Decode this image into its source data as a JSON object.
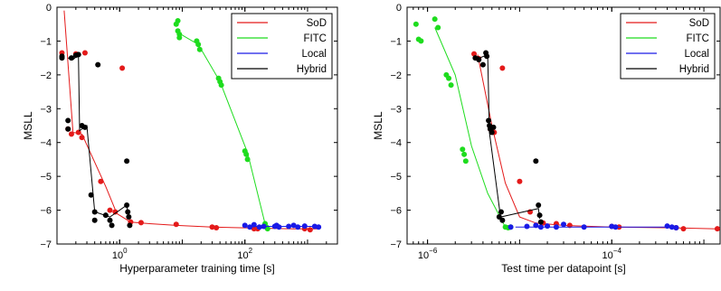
{
  "chart_data": [
    {
      "type": "scatter",
      "xscale": "log",
      "xlabel": "Hyperparameter training time [s]",
      "ylabel": "MSLL",
      "xlim": [
        0.1,
        3000
      ],
      "ylim": [
        -7,
        0
      ],
      "xticks": [
        {
          "value": 1,
          "base": "10",
          "exp": "0"
        },
        {
          "value": 100,
          "base": "10",
          "exp": "2"
        }
      ],
      "yticks": [
        0,
        -1,
        -2,
        -3,
        -4,
        -5,
        -6,
        -7
      ],
      "legend_position": "top-right",
      "series": [
        {
          "name": "SoD",
          "color": "#e41a1a",
          "line": [
            [
              0.13,
              -0.1
            ],
            [
              0.18,
              -3.7
            ],
            [
              0.25,
              -3.75
            ],
            [
              0.6,
              -5.3
            ],
            [
              0.9,
              -6.1
            ],
            [
              1.5,
              -6.35
            ],
            [
              3,
              -6.4
            ],
            [
              8,
              -6.45
            ],
            [
              30,
              -6.5
            ],
            [
              150,
              -6.53
            ],
            [
              600,
              -6.55
            ],
            [
              1500,
              -6.55
            ]
          ],
          "points": [
            [
              0.12,
              -1.35
            ],
            [
              0.15,
              -3.6
            ],
            [
              0.17,
              -3.75
            ],
            [
              0.2,
              -1.38
            ],
            [
              0.22,
              -3.7
            ],
            [
              0.25,
              -3.85
            ],
            [
              0.28,
              -1.35
            ],
            [
              0.5,
              -5.15
            ],
            [
              0.7,
              -6.0
            ],
            [
              0.85,
              -6.05
            ],
            [
              1.1,
              -1.8
            ],
            [
              1.5,
              -6.35
            ],
            [
              2.2,
              -6.37
            ],
            [
              8,
              -6.42
            ],
            [
              30,
              -6.5
            ],
            [
              35,
              -6.52
            ],
            [
              140,
              -6.55
            ],
            [
              160,
              -6.55
            ],
            [
              900,
              -6.55
            ],
            [
              1100,
              -6.58
            ]
          ]
        },
        {
          "name": "FITC",
          "color": "#1edc1e",
          "line": [
            [
              8.5,
              -0.75
            ],
            [
              18,
              -1.1
            ],
            [
              40,
              -2.2
            ],
            [
              110,
              -4.3
            ],
            [
              220,
              -6.55
            ]
          ],
          "points": [
            [
              8,
              -0.5
            ],
            [
              8.5,
              -0.4
            ],
            [
              8.5,
              -0.7
            ],
            [
              9,
              -0.8
            ],
            [
              9,
              -0.9
            ],
            [
              17,
              -1.0
            ],
            [
              18,
              -1.1
            ],
            [
              19,
              -1.25
            ],
            [
              38,
              -2.1
            ],
            [
              40,
              -2.2
            ],
            [
              42,
              -2.3
            ],
            [
              100,
              -4.25
            ],
            [
              105,
              -4.35
            ],
            [
              110,
              -4.5
            ],
            [
              210,
              -6.4
            ],
            [
              220,
              -6.5
            ],
            [
              230,
              -6.55
            ]
          ]
        },
        {
          "name": "Local",
          "color": "#1a1ae6",
          "line": [
            [
              120,
              -6.48
            ],
            [
              300,
              -6.48
            ],
            [
              1500,
              -6.48
            ]
          ],
          "points": [
            [
              100,
              -6.45
            ],
            [
              120,
              -6.5
            ],
            [
              140,
              -6.43
            ],
            [
              170,
              -6.5
            ],
            [
              200,
              -6.48
            ],
            [
              300,
              -6.48
            ],
            [
              320,
              -6.45
            ],
            [
              350,
              -6.5
            ],
            [
              500,
              -6.48
            ],
            [
              600,
              -6.45
            ],
            [
              700,
              -6.5
            ],
            [
              900,
              -6.47
            ],
            [
              1300,
              -6.48
            ],
            [
              1500,
              -6.5
            ]
          ]
        },
        {
          "name": "Hybrid",
          "color": "#000000",
          "line": [
            [
              0.15,
              -1.5
            ],
            [
              0.18,
              -1.55
            ],
            [
              0.22,
              -1.4
            ],
            [
              0.23,
              -3.65
            ],
            [
              0.3,
              -3.5
            ],
            [
              0.4,
              -6.05
            ],
            [
              0.7,
              -6.2
            ],
            [
              1.3,
              -5.85
            ],
            [
              1.4,
              -6.25
            ]
          ],
          "points": [
            [
              0.12,
              -1.45
            ],
            [
              0.12,
              -1.5
            ],
            [
              0.15,
              -3.35
            ],
            [
              0.15,
              -3.6
            ],
            [
              0.17,
              -1.5
            ],
            [
              0.2,
              -1.42
            ],
            [
              0.22,
              -1.4
            ],
            [
              0.25,
              -3.5
            ],
            [
              0.28,
              -3.55
            ],
            [
              0.35,
              -5.55
            ],
            [
              0.4,
              -6.05
            ],
            [
              0.4,
              -6.3
            ],
            [
              0.45,
              -1.7
            ],
            [
              0.6,
              -6.15
            ],
            [
              0.7,
              -6.3
            ],
            [
              0.75,
              -6.45
            ],
            [
              1.3,
              -4.55
            ],
            [
              1.3,
              -5.85
            ],
            [
              1.35,
              -6.05
            ],
            [
              1.4,
              -6.2
            ],
            [
              1.45,
              -6.45
            ]
          ]
        }
      ]
    },
    {
      "type": "scatter",
      "xscale": "log",
      "xlabel": "Test time per datapoint [s]",
      "ylabel": "MSLL",
      "xlim": [
        6e-07,
        0.0015
      ],
      "ylim": [
        -7,
        0
      ],
      "xticks": [
        {
          "value": 1e-06,
          "base": "10",
          "exp": "−6"
        },
        {
          "value": 0.0001,
          "base": "10",
          "exp": "−4"
        }
      ],
      "yticks": [
        0,
        -1,
        -2,
        -3,
        -4,
        -5,
        -6,
        -7
      ],
      "legend_position": "top-right",
      "series": [
        {
          "name": "SoD",
          "color": "#e41a1a",
          "line": [
            [
              3.5e-06,
              -1.4
            ],
            [
              5e-06,
              -3.5
            ],
            [
              7e-06,
              -5.2
            ],
            [
              1e-05,
              -6.2
            ],
            [
              1.5e-05,
              -6.38
            ],
            [
              3e-05,
              -6.45
            ],
            [
              0.0001,
              -6.5
            ],
            [
              0.0004,
              -6.52
            ],
            [
              0.0014,
              -6.55
            ]
          ],
          "points": [
            [
              3.2e-06,
              -1.38
            ],
            [
              3.6e-06,
              -1.52
            ],
            [
              4.8e-06,
              -3.6
            ],
            [
              5.3e-06,
              -3.7
            ],
            [
              6.5e-06,
              -1.8
            ],
            [
              1e-05,
              -5.15
            ],
            [
              1.3e-05,
              -6.05
            ],
            [
              1.8e-05,
              -6.38
            ],
            [
              2.5e-05,
              -6.4
            ],
            [
              3.5e-05,
              -6.45
            ],
            [
              0.0001,
              -6.48
            ],
            [
              0.00012,
              -6.5
            ],
            [
              0.0005,
              -6.52
            ],
            [
              0.0006,
              -6.55
            ],
            [
              0.0014,
              -6.55
            ]
          ]
        },
        {
          "name": "FITC",
          "color": "#1edc1e",
          "line": [
            [
              1.2e-06,
              -0.6
            ],
            [
              2e-06,
              -2.0
            ],
            [
              3e-06,
              -4.1
            ],
            [
              4.5e-06,
              -5.5
            ],
            [
              7e-06,
              -6.5
            ]
          ],
          "points": [
            [
              7.5e-07,
              -0.5
            ],
            [
              8e-07,
              -0.95
            ],
            [
              8.5e-07,
              -1.0
            ],
            [
              1.2e-06,
              -0.35
            ],
            [
              1.3e-06,
              -0.6
            ],
            [
              1.6e-06,
              -2.0
            ],
            [
              1.7e-06,
              -2.1
            ],
            [
              1.8e-06,
              -2.3
            ],
            [
              2.4e-06,
              -4.2
            ],
            [
              2.5e-06,
              -4.35
            ],
            [
              2.6e-06,
              -4.55
            ],
            [
              7e-06,
              -6.5
            ],
            [
              7.5e-06,
              -6.52
            ],
            [
              8e-06,
              -6.5
            ]
          ]
        },
        {
          "name": "Local",
          "color": "#1a1ae6",
          "line": [
            [
              9e-06,
              -6.5
            ],
            [
              3e-05,
              -6.5
            ],
            [
              0.0005,
              -6.5
            ]
          ],
          "points": [
            [
              8e-06,
              -6.5
            ],
            [
              1.2e-05,
              -6.48
            ],
            [
              1.5e-05,
              -6.45
            ],
            [
              1.7e-05,
              -6.5
            ],
            [
              2e-05,
              -6.47
            ],
            [
              2.5e-05,
              -6.5
            ],
            [
              3e-05,
              -6.42
            ],
            [
              5e-05,
              -6.5
            ],
            [
              0.0001,
              -6.48
            ],
            [
              0.00011,
              -6.5
            ],
            [
              0.0004,
              -6.47
            ],
            [
              0.00045,
              -6.5
            ],
            [
              0.0005,
              -6.52
            ]
          ]
        },
        {
          "name": "Hybrid",
          "color": "#000000",
          "line": [
            [
              3.5e-06,
              -1.45
            ],
            [
              3.7e-06,
              -1.5
            ],
            [
              4.5e-06,
              -1.4
            ],
            [
              4.7e-06,
              -3.7
            ],
            [
              6.2e-06,
              -6.2
            ],
            [
              1.6e-05,
              -5.95
            ],
            [
              1.65e-05,
              -6.25
            ]
          ],
          "points": [
            [
              3.3e-06,
              -1.5
            ],
            [
              3.6e-06,
              -1.55
            ],
            [
              4e-06,
              -1.7
            ],
            [
              4.3e-06,
              -1.35
            ],
            [
              4.4e-06,
              -1.45
            ],
            [
              4.6e-06,
              -3.35
            ],
            [
              4.7e-06,
              -3.5
            ],
            [
              4.8e-06,
              -3.6
            ],
            [
              5e-06,
              -3.7
            ],
            [
              5.2e-06,
              -3.55
            ],
            [
              6e-06,
              -6.2
            ],
            [
              6.3e-06,
              -6.05
            ],
            [
              6.5e-06,
              -6.3
            ],
            [
              1.5e-05,
              -4.55
            ],
            [
              1.6e-05,
              -5.85
            ],
            [
              1.65e-05,
              -6.15
            ],
            [
              1.7e-05,
              -6.35
            ]
          ]
        }
      ]
    }
  ]
}
